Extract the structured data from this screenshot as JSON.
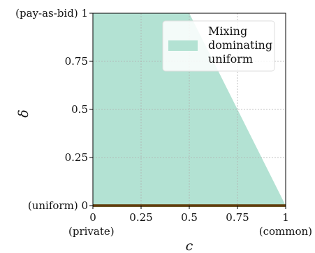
{
  "chart_data": {
    "type": "area",
    "xlabel": "c",
    "ylabel": "δ",
    "xlim": [
      0,
      1
    ],
    "ylim": [
      0,
      1
    ],
    "grid": true,
    "legend_placement": "top-right",
    "x_ticks": [
      {
        "value": 0,
        "label": "0",
        "sublabel": "(private)"
      },
      {
        "value": 0.25,
        "label": "0.25",
        "sublabel": ""
      },
      {
        "value": 0.5,
        "label": "0.5",
        "sublabel": ""
      },
      {
        "value": 0.75,
        "label": "0.75",
        "sublabel": ""
      },
      {
        "value": 1,
        "label": "1",
        "sublabel": "(common)"
      }
    ],
    "y_ticks": [
      {
        "value": 0,
        "label": "(uniform) 0"
      },
      {
        "value": 0.25,
        "label": "0.25"
      },
      {
        "value": 0.5,
        "label": "0.5"
      },
      {
        "value": 0.75,
        "label": "0.75"
      },
      {
        "value": 1,
        "label": "(pay-as-bid) 1"
      }
    ],
    "series": [
      {
        "name": "Mixing dominating uniform",
        "legend_lines": [
          "Mixing",
          "dominating",
          "uniform"
        ],
        "color": "#b3e2d3",
        "polygon": [
          [
            0,
            0
          ],
          [
            0,
            1
          ],
          [
            0.5,
            1
          ],
          [
            1,
            0
          ]
        ]
      }
    ],
    "baseline": {
      "y": 0,
      "color": "#c8761e",
      "edge_color": "#6b5a2a"
    }
  }
}
